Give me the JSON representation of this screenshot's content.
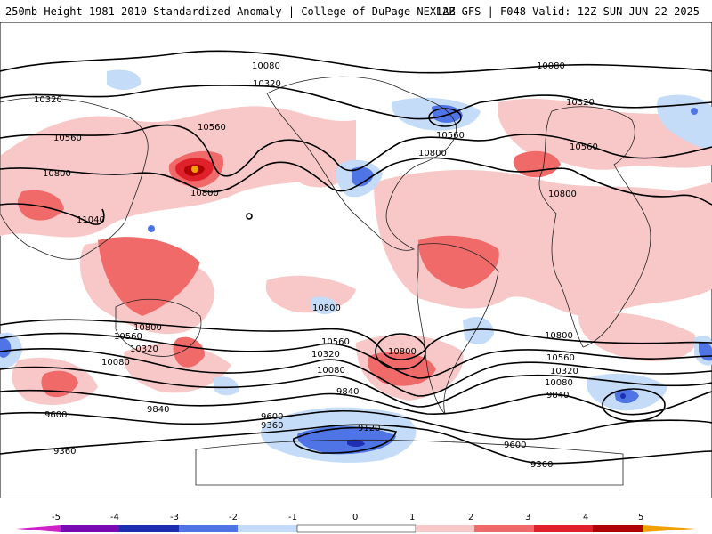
{
  "header": {
    "title": "250mb Height 1981-2010 Standardized Anomaly | College of DuPage NEXLAB",
    "run_info": "12Z GFS | F048 Valid: 12Z SUN JUN 22 2025"
  },
  "colors": {
    "neg5": "#d020c8",
    "neg4": "#7a0ab4",
    "neg3": "#1e2fb4",
    "neg2": "#4f74e6",
    "neg1": "#c4dcf8",
    "zero": "#ffffff",
    "pos1": "#f8c8c8",
    "pos2": "#f06a6a",
    "pos3": "#e0202a",
    "pos4": "#b00000",
    "pos5": "#f0a000"
  },
  "colorbar": {
    "ticks": [
      "-5",
      "-4",
      "-3",
      "-2",
      "-1",
      "0",
      "1",
      "2",
      "3",
      "4",
      "5"
    ]
  },
  "contour_labels": {
    "c10080_a": "10080",
    "c10080_b": "10080",
    "c10320_a": "10320",
    "c10320_b": "10320",
    "c10320_c": "10320",
    "c10560_a": "10560",
    "c10560_b": "10560",
    "c10560_c": "10560",
    "c10560_d": "10560",
    "c10800_a": "10800",
    "c10800_b": "10800",
    "c10800_c": "10800",
    "c10800_d": "10800",
    "c11040_a": "11040",
    "s10800_a": "10800",
    "s10560_a": "10560",
    "s10320_a": "10320",
    "s10080_a": "10080",
    "s10560_b": "10560",
    "s10320_b": "10320",
    "s10080_b": "10080",
    "s10800_b": "10800",
    "s10800_c": "10800",
    "s10560_c": "10560",
    "s10320_c": "10320",
    "s10080_c": "10080",
    "s9840_a": "9840",
    "s9840_b": "9840",
    "s9840_c": "9840",
    "s9600_a": "9600",
    "s9600_b": "9600",
    "s9600_c": "9600",
    "s9360_a": "9360",
    "s9360_b": "9360",
    "s9360_c": "9360",
    "s9120_a": "9120",
    "s10800_d": "10800"
  }
}
